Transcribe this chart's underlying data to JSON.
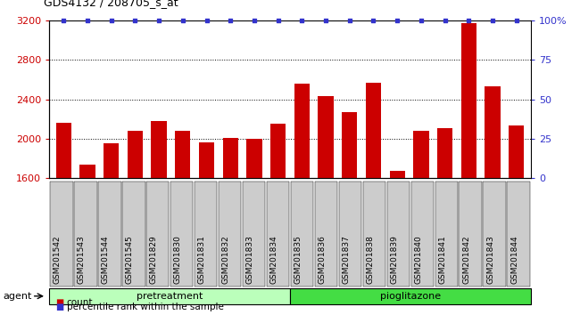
{
  "title": "GDS4132 / 208705_s_at",
  "samples": [
    "GSM201542",
    "GSM201543",
    "GSM201544",
    "GSM201545",
    "GSM201829",
    "GSM201830",
    "GSM201831",
    "GSM201832",
    "GSM201833",
    "GSM201834",
    "GSM201835",
    "GSM201836",
    "GSM201837",
    "GSM201838",
    "GSM201839",
    "GSM201840",
    "GSM201841",
    "GSM201842",
    "GSM201843",
    "GSM201844"
  ],
  "counts": [
    2160,
    1740,
    1950,
    2080,
    2180,
    2080,
    1960,
    2010,
    2000,
    2150,
    2560,
    2430,
    2270,
    2570,
    1670,
    2080,
    2110,
    3170,
    2530,
    2130
  ],
  "percentile": [
    100,
    100,
    100,
    100,
    100,
    100,
    100,
    100,
    100,
    100,
    100,
    100,
    100,
    100,
    100,
    100,
    100,
    100,
    100,
    100
  ],
  "pretreatment_count": 10,
  "pioglitazone_count": 10,
  "bar_color": "#cc0000",
  "dot_color": "#3333cc",
  "ylim_left": [
    1600,
    3200
  ],
  "ylim_right": [
    0,
    100
  ],
  "yticks_left": [
    1600,
    2000,
    2400,
    2800,
    3200
  ],
  "yticks_right": [
    0,
    25,
    50,
    75,
    100
  ],
  "pretreat_color": "#bbffbb",
  "pioglit_color": "#44dd44",
  "agent_label": "agent",
  "pretreat_label": "pretreatment",
  "pioglit_label": "pioglitazone",
  "legend_count_label": "count",
  "legend_pct_label": "percentile rank within the sample",
  "plot_bg": "#ffffff",
  "xtick_bg": "#cccccc",
  "grid_color": "#000000"
}
